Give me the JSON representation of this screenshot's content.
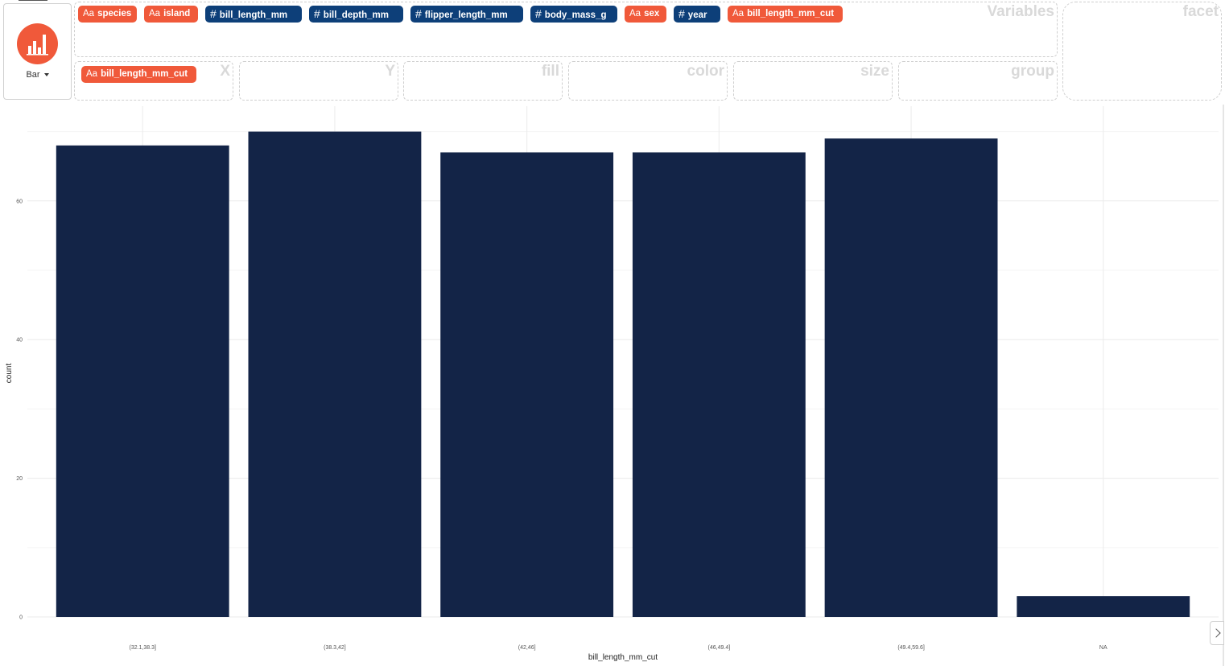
{
  "geom": {
    "label": "Bar",
    "icon": "bar-chart-icon",
    "accent": "#f0593a"
  },
  "variables_panel": {
    "label": "Variables",
    "items": [
      {
        "name": "species",
        "type": "categorical",
        "type_glyph": "Aa"
      },
      {
        "name": "island",
        "type": "categorical",
        "type_glyph": "Aa"
      },
      {
        "name": "bill_length_mm",
        "type": "numeric",
        "type_glyph": "#"
      },
      {
        "name": "bill_depth_mm",
        "type": "numeric",
        "type_glyph": "#"
      },
      {
        "name": "flipper_length_mm",
        "type": "numeric",
        "type_glyph": "#"
      },
      {
        "name": "body_mass_g",
        "type": "numeric",
        "type_glyph": "#"
      },
      {
        "name": "sex",
        "type": "categorical",
        "type_glyph": "Aa"
      },
      {
        "name": "year",
        "type": "numeric",
        "type_glyph": "#"
      },
      {
        "name": "bill_length_mm_cut",
        "type": "categorical",
        "type_glyph": "Aa"
      }
    ]
  },
  "mapping_zones": [
    {
      "label": "X",
      "value": "bill_length_mm_cut",
      "type_glyph": "Aa"
    },
    {
      "label": "Y",
      "value": null
    },
    {
      "label": "fill",
      "value": null
    },
    {
      "label": "color",
      "value": null
    },
    {
      "label": "size",
      "value": null
    },
    {
      "label": "group",
      "value": null
    }
  ],
  "facet_zone": {
    "label": "facet"
  },
  "colors": {
    "categorical": "#f0593a",
    "numeric": "#0d3f79",
    "bar_fill": "#132447"
  },
  "chart_data": {
    "type": "bar",
    "categories": [
      "(32.1,38.3]",
      "(38.3,42]",
      "(42,46]",
      "(46,49.4]",
      "(49.4,59.6]",
      "NA"
    ],
    "values": [
      68,
      70,
      67,
      67,
      69,
      3
    ],
    "xlabel": "bill_length_mm_cut",
    "ylabel": "count",
    "ylim": [
      0,
      70.3
    ],
    "y_ticks": [
      0,
      20,
      40,
      60
    ],
    "grid": true,
    "legend": "none"
  }
}
